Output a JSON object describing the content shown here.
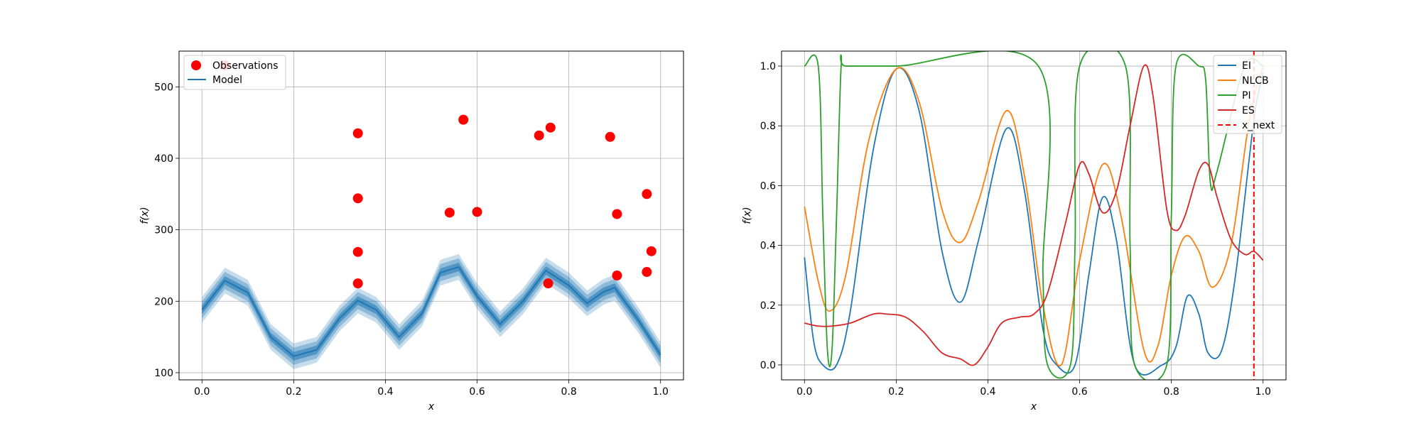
{
  "chart_data": [
    {
      "type": "line",
      "xlabel": "x",
      "ylabel": "f(x)",
      "xlim": [
        -0.05,
        1.05
      ],
      "ylim": [
        90,
        550
      ],
      "xticks": [
        0.0,
        0.2,
        0.4,
        0.6,
        0.8,
        1.0
      ],
      "xtick_labels": [
        "0.0",
        "0.2",
        "0.4",
        "0.6",
        "0.8",
        "1.0"
      ],
      "yticks": [
        100,
        200,
        300,
        400,
        500
      ],
      "ytick_labels": [
        "100",
        "200",
        "300",
        "400",
        "500"
      ],
      "grid": true,
      "legend": {
        "placement": "top-left",
        "entries": [
          "Observations",
          "Model"
        ]
      },
      "colors": {
        "observations": "#ff0000",
        "model": "#1f77b4"
      },
      "observations": {
        "name": "Observations",
        "x": [
          0.05,
          0.34,
          0.34,
          0.34,
          0.34,
          0.54,
          0.57,
          0.6,
          0.735,
          0.755,
          0.76,
          0.89,
          0.905,
          0.905,
          0.97,
          0.97,
          0.98
        ],
        "y": [
          530,
          435,
          344,
          269,
          225,
          324,
          454,
          325,
          432,
          225,
          443,
          430,
          322,
          236,
          350,
          241,
          270
        ]
      },
      "model": {
        "name": "Model",
        "x": [
          0.0,
          0.05,
          0.1,
          0.15,
          0.2,
          0.25,
          0.3,
          0.34,
          0.38,
          0.43,
          0.48,
          0.52,
          0.56,
          0.6,
          0.65,
          0.7,
          0.75,
          0.8,
          0.84,
          0.875,
          0.9,
          0.95,
          1.0
        ],
        "y": [
          188,
          229,
          212,
          150,
          123,
          132,
          176,
          201,
          188,
          150,
          183,
          240,
          248,
          207,
          168,
          200,
          243,
          222,
          197,
          213,
          219,
          175,
          125
        ],
        "band_halfwidths": [
          6,
          12,
          18
        ]
      }
    },
    {
      "type": "line",
      "xlabel": "x",
      "ylabel": "f(x)",
      "xlim": [
        -0.05,
        1.05
      ],
      "ylim": [
        -0.05,
        1.05
      ],
      "xticks": [
        0.0,
        0.2,
        0.4,
        0.6,
        0.8,
        1.0
      ],
      "xtick_labels": [
        "0.0",
        "0.2",
        "0.4",
        "0.6",
        "0.8",
        "1.0"
      ],
      "yticks": [
        0.0,
        0.2,
        0.4,
        0.6,
        0.8,
        1.0
      ],
      "ytick_labels": [
        "0.0",
        "0.2",
        "0.4",
        "0.6",
        "0.8",
        "1.0"
      ],
      "grid": true,
      "legend": {
        "placement": "top-right",
        "entries": [
          "EI",
          "NLCB",
          "PI",
          "ES",
          "x_next"
        ]
      },
      "series": [
        {
          "name": "EI",
          "color": "#1f77b4",
          "x": [
            0.0,
            0.02,
            0.04,
            0.07,
            0.1,
            0.15,
            0.2,
            0.25,
            0.3,
            0.34,
            0.38,
            0.44,
            0.48,
            0.52,
            0.55,
            0.59,
            0.62,
            0.65,
            0.68,
            0.72,
            0.78,
            0.81,
            0.835,
            0.86,
            0.88,
            0.91,
            0.94,
            0.98,
            1.0
          ],
          "y": [
            0.36,
            0.08,
            0.0,
            0.0,
            0.18,
            0.72,
            0.99,
            0.85,
            0.38,
            0.21,
            0.42,
            0.79,
            0.58,
            0.12,
            0.0,
            0.0,
            0.3,
            0.56,
            0.42,
            0.0,
            0.0,
            0.06,
            0.23,
            0.17,
            0.04,
            0.05,
            0.3,
            0.82,
            0.98
          ]
        },
        {
          "name": "NLCB",
          "color": "#ff7f0e",
          "x": [
            0.0,
            0.03,
            0.055,
            0.09,
            0.14,
            0.2,
            0.25,
            0.3,
            0.34,
            0.38,
            0.44,
            0.48,
            0.52,
            0.56,
            0.6,
            0.65,
            0.69,
            0.74,
            0.77,
            0.8,
            0.83,
            0.86,
            0.89,
            0.93,
            0.97,
            1.0
          ],
          "y": [
            0.53,
            0.28,
            0.18,
            0.3,
            0.75,
            0.99,
            0.88,
            0.52,
            0.41,
            0.55,
            0.85,
            0.63,
            0.2,
            0.0,
            0.35,
            0.67,
            0.5,
            0.05,
            0.06,
            0.3,
            0.43,
            0.38,
            0.26,
            0.4,
            0.82,
            1.0
          ]
        },
        {
          "name": "PI",
          "color": "#2ca02c",
          "x": [
            0.0,
            0.03,
            0.04,
            0.05,
            0.06,
            0.07,
            0.08,
            0.09,
            0.2,
            0.51,
            0.52,
            0.53,
            0.58,
            0.59,
            0.6,
            0.7,
            0.71,
            0.72,
            0.79,
            0.8,
            0.81,
            0.86,
            0.875,
            0.885,
            0.9,
            0.96,
            1.0
          ],
          "y": [
            1.0,
            1.0,
            0.5,
            0.05,
            0.05,
            0.5,
            1.0,
            1.0,
            1.0,
            1.0,
            0.3,
            0.0,
            0.0,
            0.4,
            1.0,
            1.0,
            0.4,
            0.0,
            0.0,
            0.5,
            1.0,
            1.0,
            0.95,
            0.61,
            0.65,
            1.0,
            1.0
          ]
        },
        {
          "name": "ES",
          "color": "#d62728",
          "x": [
            0.0,
            0.03,
            0.06,
            0.1,
            0.15,
            0.18,
            0.22,
            0.26,
            0.3,
            0.34,
            0.37,
            0.4,
            0.43,
            0.47,
            0.5,
            0.53,
            0.57,
            0.6,
            0.62,
            0.65,
            0.68,
            0.71,
            0.74,
            0.76,
            0.79,
            0.81,
            0.83,
            0.86,
            0.88,
            0.9,
            0.93,
            0.96,
            0.98,
            1.0
          ],
          "y": [
            0.14,
            0.13,
            0.13,
            0.14,
            0.17,
            0.17,
            0.16,
            0.11,
            0.04,
            0.02,
            0.0,
            0.06,
            0.14,
            0.16,
            0.17,
            0.24,
            0.48,
            0.67,
            0.64,
            0.51,
            0.58,
            0.8,
            1.0,
            0.9,
            0.52,
            0.45,
            0.5,
            0.65,
            0.67,
            0.56,
            0.42,
            0.37,
            0.38,
            0.35
          ]
        }
      ],
      "x_next": {
        "name": "x_next",
        "x": 0.98,
        "color": "#ff0000",
        "style": "dashed"
      }
    }
  ]
}
